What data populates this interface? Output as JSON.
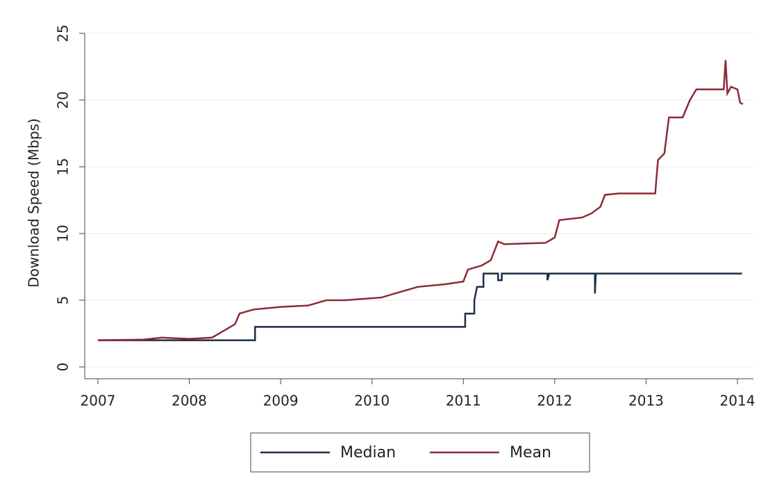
{
  "chart_data": {
    "type": "line",
    "y_label": "Download Speed (Mbps)",
    "xlim": [
      2007,
      2014
    ],
    "xticks": [
      2007,
      2008,
      2009,
      2010,
      2011,
      2012,
      2013,
      2014
    ],
    "ylim": [
      0,
      25
    ],
    "yticks": [
      0,
      5,
      10,
      15,
      20,
      25
    ],
    "grid": true,
    "legend": "bottom",
    "series": [
      {
        "name": "Median",
        "color": "#1b2d47",
        "x": [
          2007.0,
          2008.72,
          2008.72,
          2011.02,
          2011.02,
          2011.12,
          2011.12,
          2011.15,
          2011.22,
          2011.22,
          2011.38,
          2011.38,
          2011.42,
          2011.42,
          2011.92,
          2011.92,
          2011.94,
          2012.44,
          2012.44,
          2012.45,
          2014.05
        ],
        "values": [
          2,
          2,
          3,
          3,
          4,
          4,
          5,
          6,
          6,
          7,
          7,
          6.5,
          6.5,
          7,
          7,
          6.5,
          7,
          7,
          5.5,
          7,
          7
        ]
      },
      {
        "name": "Mean",
        "color": "#8c2b35",
        "x": [
          2007.0,
          2007.5,
          2007.7,
          2008.0,
          2008.25,
          2008.35,
          2008.5,
          2008.55,
          2008.7,
          2009.0,
          2009.3,
          2009.5,
          2009.7,
          2010.1,
          2010.3,
          2010.5,
          2010.8,
          2011.0,
          2011.05,
          2011.2,
          2011.3,
          2011.38,
          2011.45,
          2011.9,
          2012.0,
          2012.05,
          2012.3,
          2012.4,
          2012.5,
          2012.55,
          2012.7,
          2013.1,
          2013.13,
          2013.2,
          2013.25,
          2013.4,
          2013.48,
          2013.55,
          2013.85,
          2013.87,
          2013.89,
          2013.93,
          2014.0,
          2014.03,
          2014.06
        ],
        "values": [
          2.0,
          2.05,
          2.2,
          2.1,
          2.2,
          2.6,
          3.2,
          4.0,
          4.3,
          4.5,
          4.6,
          5.0,
          5.0,
          5.2,
          5.6,
          6.0,
          6.2,
          6.4,
          7.3,
          7.6,
          8.0,
          9.4,
          9.2,
          9.3,
          9.7,
          11.0,
          11.2,
          11.5,
          12.0,
          12.9,
          13.0,
          13.0,
          15.5,
          16.0,
          18.7,
          18.7,
          20.0,
          20.8,
          20.8,
          23.0,
          20.5,
          21.0,
          20.8,
          19.8,
          19.7
        ]
      }
    ]
  }
}
